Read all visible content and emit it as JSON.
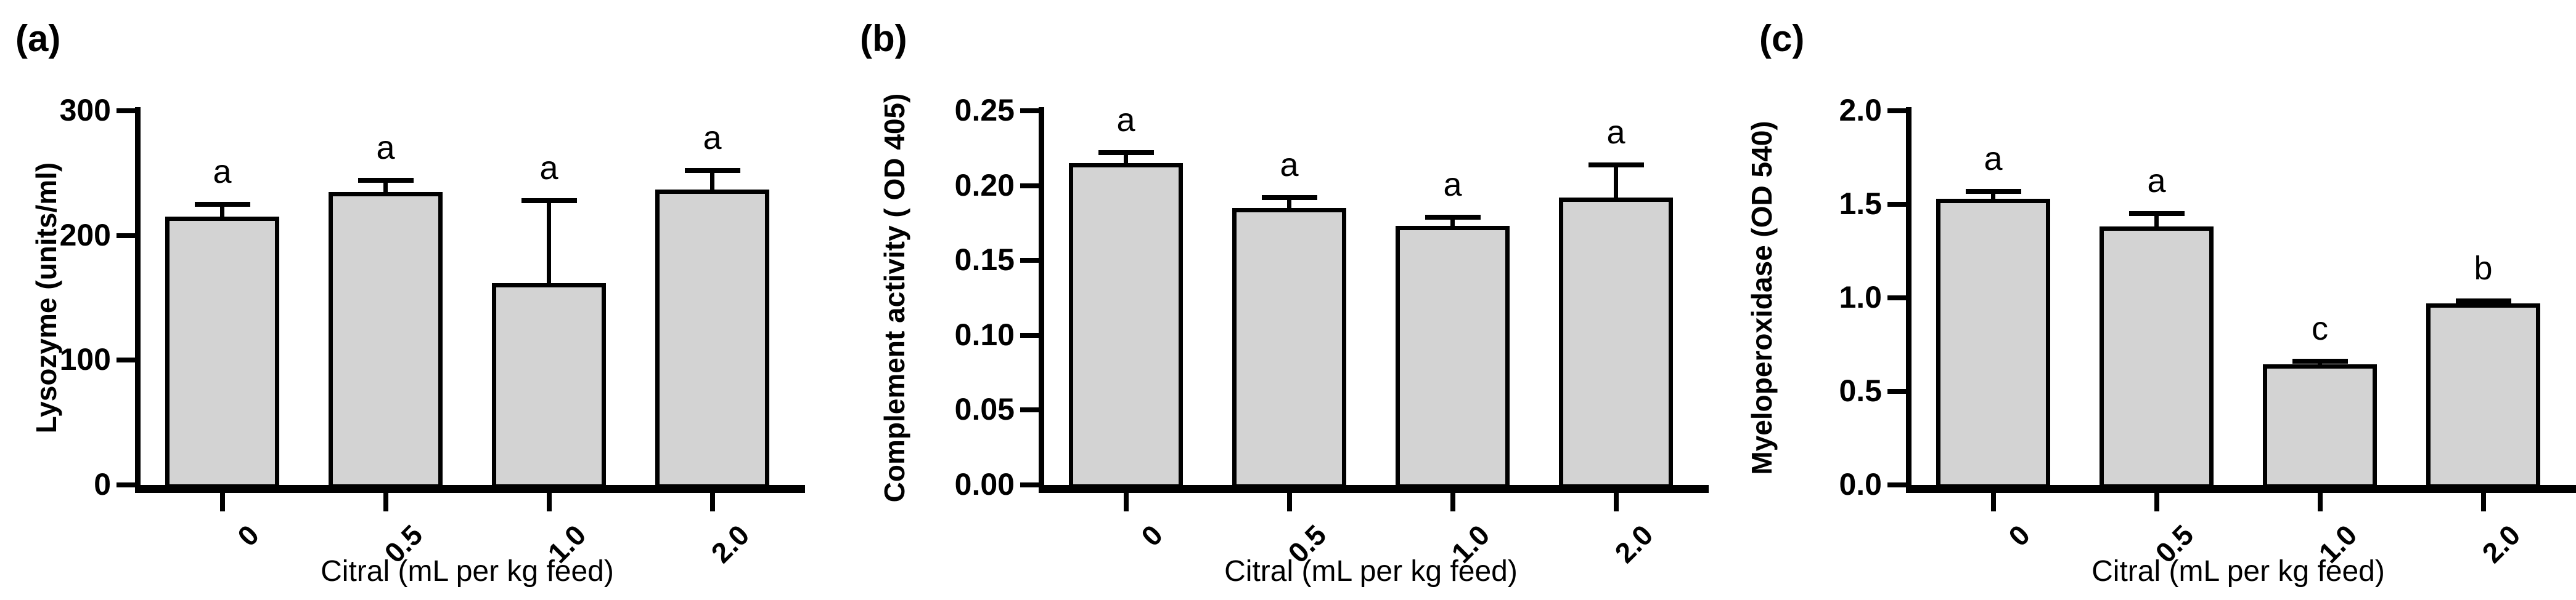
{
  "figure": {
    "background": "#ffffff",
    "axis_color": "#000000",
    "bar_fill": "#d3d3d3",
    "bar_border": "#000000",
    "text_color": "#000000"
  },
  "chart_data": [
    {
      "type": "bar",
      "panel_label": "(a)",
      "ylabel": "Lysozyme (units/ml)",
      "xlabel": "Citral (mL per kg feed)",
      "categories": [
        "0",
        "0.5",
        "1.0",
        "2.0"
      ],
      "values": [
        215,
        235,
        162,
        237
      ],
      "errors_upper": [
        10,
        9,
        66,
        15
      ],
      "sig_letters": [
        "a",
        "a",
        "a",
        "a"
      ],
      "ylim": [
        0,
        300
      ],
      "ytick_values": [
        0,
        100,
        200,
        300
      ],
      "ytick_labels": [
        "0",
        "100",
        "200",
        "300"
      ],
      "grid": false,
      "legend": null
    },
    {
      "type": "bar",
      "panel_label": "(b)",
      "ylabel": "Complement activity ( OD 405)",
      "xlabel": "Citral (mL per kg feed)",
      "categories": [
        "0",
        "0.5",
        "1.0",
        "2.0"
      ],
      "values": [
        0.215,
        0.185,
        0.173,
        0.192
      ],
      "errors_upper": [
        0.007,
        0.007,
        0.006,
        0.022
      ],
      "sig_letters": [
        "a",
        "a",
        "a",
        "a"
      ],
      "ylim": [
        0,
        0.25
      ],
      "ytick_values": [
        0,
        0.05,
        0.1,
        0.15,
        0.2,
        0.25
      ],
      "ytick_labels": [
        "0.00",
        "0.05",
        "0.10",
        "0.15",
        "0.20",
        "0.25"
      ],
      "grid": false,
      "legend": null
    },
    {
      "type": "bar",
      "panel_label": "(c)",
      "ylabel": "Myeloperoxidase (OD 540)",
      "xlabel": "Citral (mL per kg feed)",
      "categories": [
        "0",
        "0.5",
        "1.0",
        "2.0"
      ],
      "values": [
        1.53,
        1.38,
        0.645,
        0.97
      ],
      "errors_upper": [
        0.04,
        0.07,
        0.015,
        0.015
      ],
      "sig_letters": [
        "a",
        "a",
        "c",
        "b"
      ],
      "ylim": [
        0,
        2.0
      ],
      "ytick_values": [
        0,
        0.5,
        1.0,
        1.5,
        2.0
      ],
      "ytick_labels": [
        "0.0",
        "0.5",
        "1.0",
        "1.5",
        "2.0"
      ],
      "grid": false,
      "legend": null
    }
  ]
}
